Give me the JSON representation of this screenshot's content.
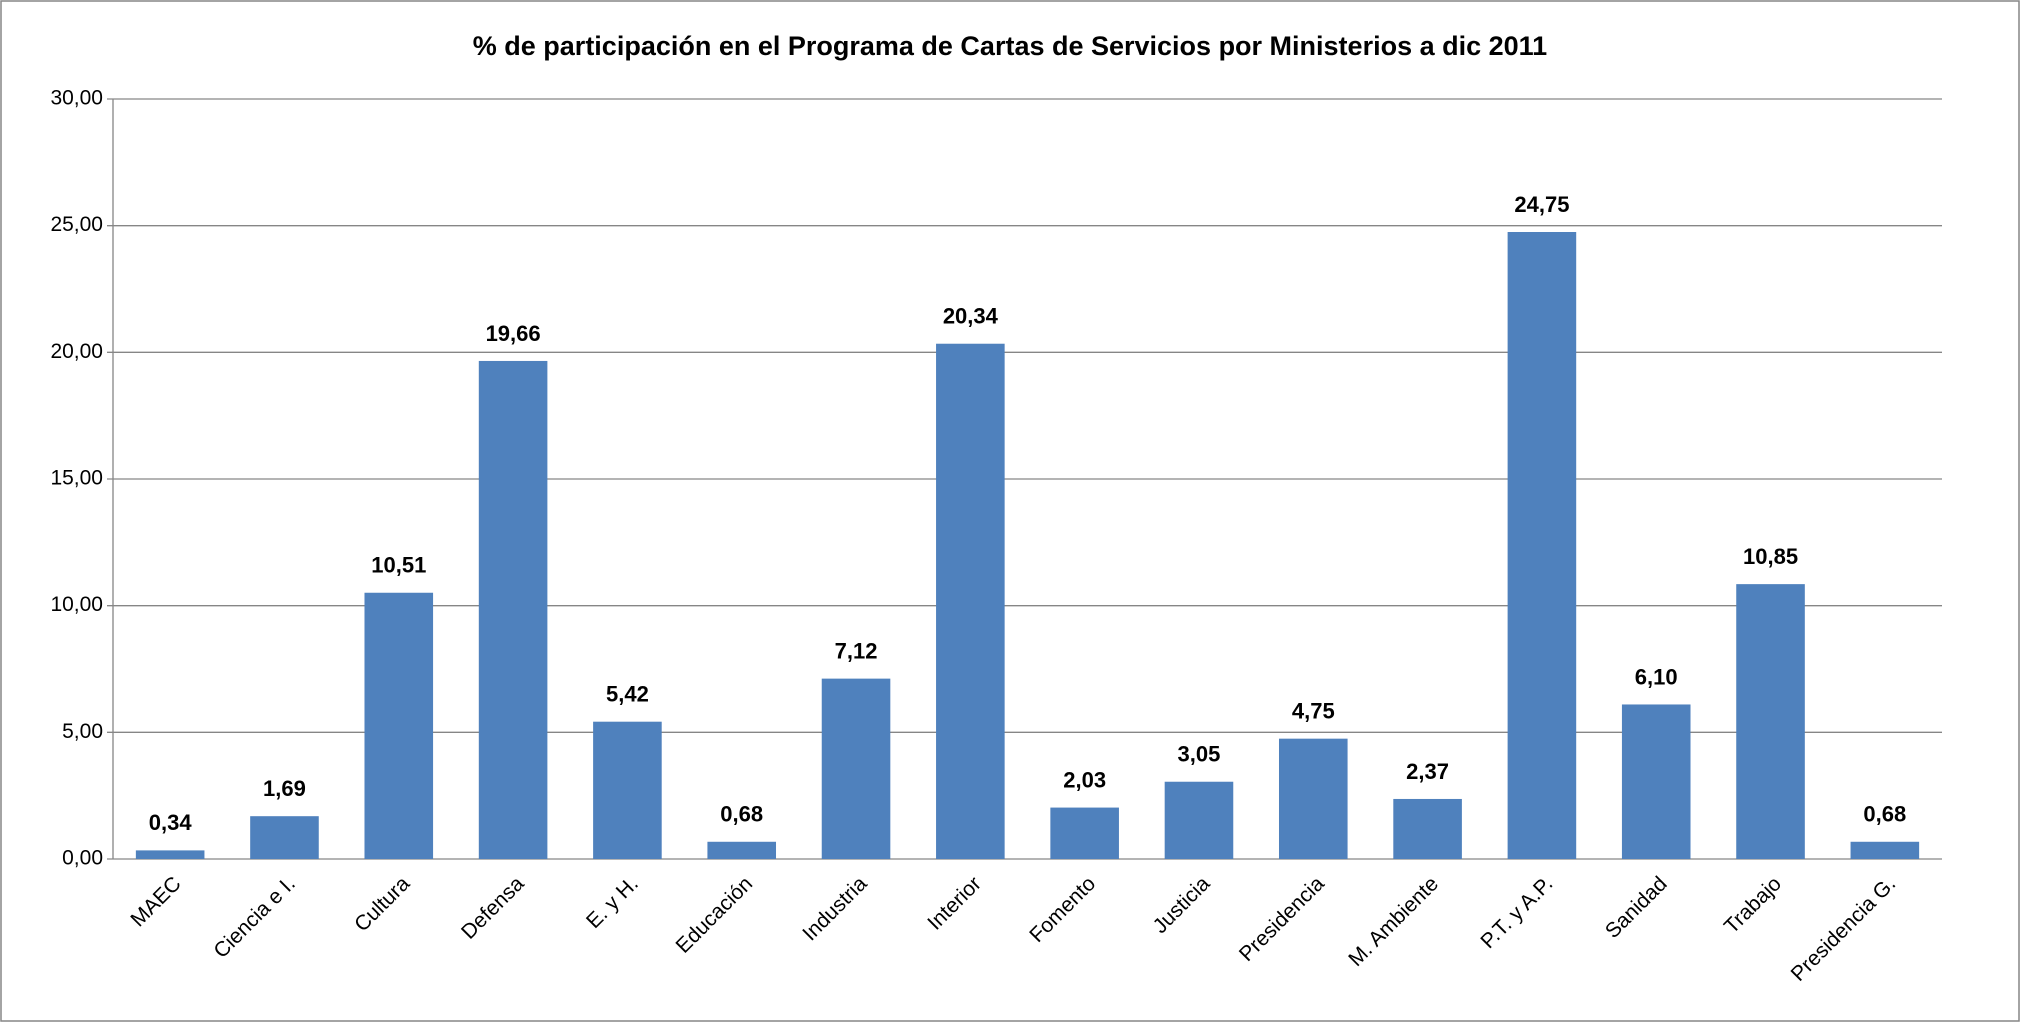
{
  "chart_data": {
    "type": "bar",
    "title": "% de participación en el Programa de Cartas de Servicios por Ministerios  a dic 2011",
    "categories": [
      "MAEC",
      "Ciencia e I.",
      "Cultura",
      "Defensa",
      "E. y H.",
      "Educación",
      "Industria",
      "Interior",
      "Fomento",
      "Justicia",
      "Presidencia",
      "M. Ambiente",
      "P.T. y A.P.",
      "Sanidad",
      "Trabajo",
      "Presidencia G."
    ],
    "values": [
      0.34,
      1.69,
      10.51,
      19.66,
      5.42,
      0.68,
      7.12,
      20.34,
      2.03,
      3.05,
      4.75,
      2.37,
      24.75,
      6.1,
      10.85,
      0.68
    ],
    "value_labels": [
      "0,34",
      "1,69",
      "10,51",
      "19,66",
      "5,42",
      "0,68",
      "7,12",
      "20,34",
      "2,03",
      "3,05",
      "4,75",
      "2,37",
      "24,75",
      "6,10",
      "10,85",
      "0,68"
    ],
    "color": "#4f81bd",
    "ylim": [
      0,
      30
    ],
    "yticks": [
      {
        "value": 0,
        "label": "0,00"
      },
      {
        "value": 5,
        "label": "5,00"
      },
      {
        "value": 10,
        "label": "10,00"
      },
      {
        "value": 15,
        "label": "15,00"
      },
      {
        "value": 20,
        "label": "20,00"
      },
      {
        "value": 25,
        "label": "25,00"
      },
      {
        "value": 30,
        "label": "30,00"
      }
    ],
    "grid": true
  }
}
